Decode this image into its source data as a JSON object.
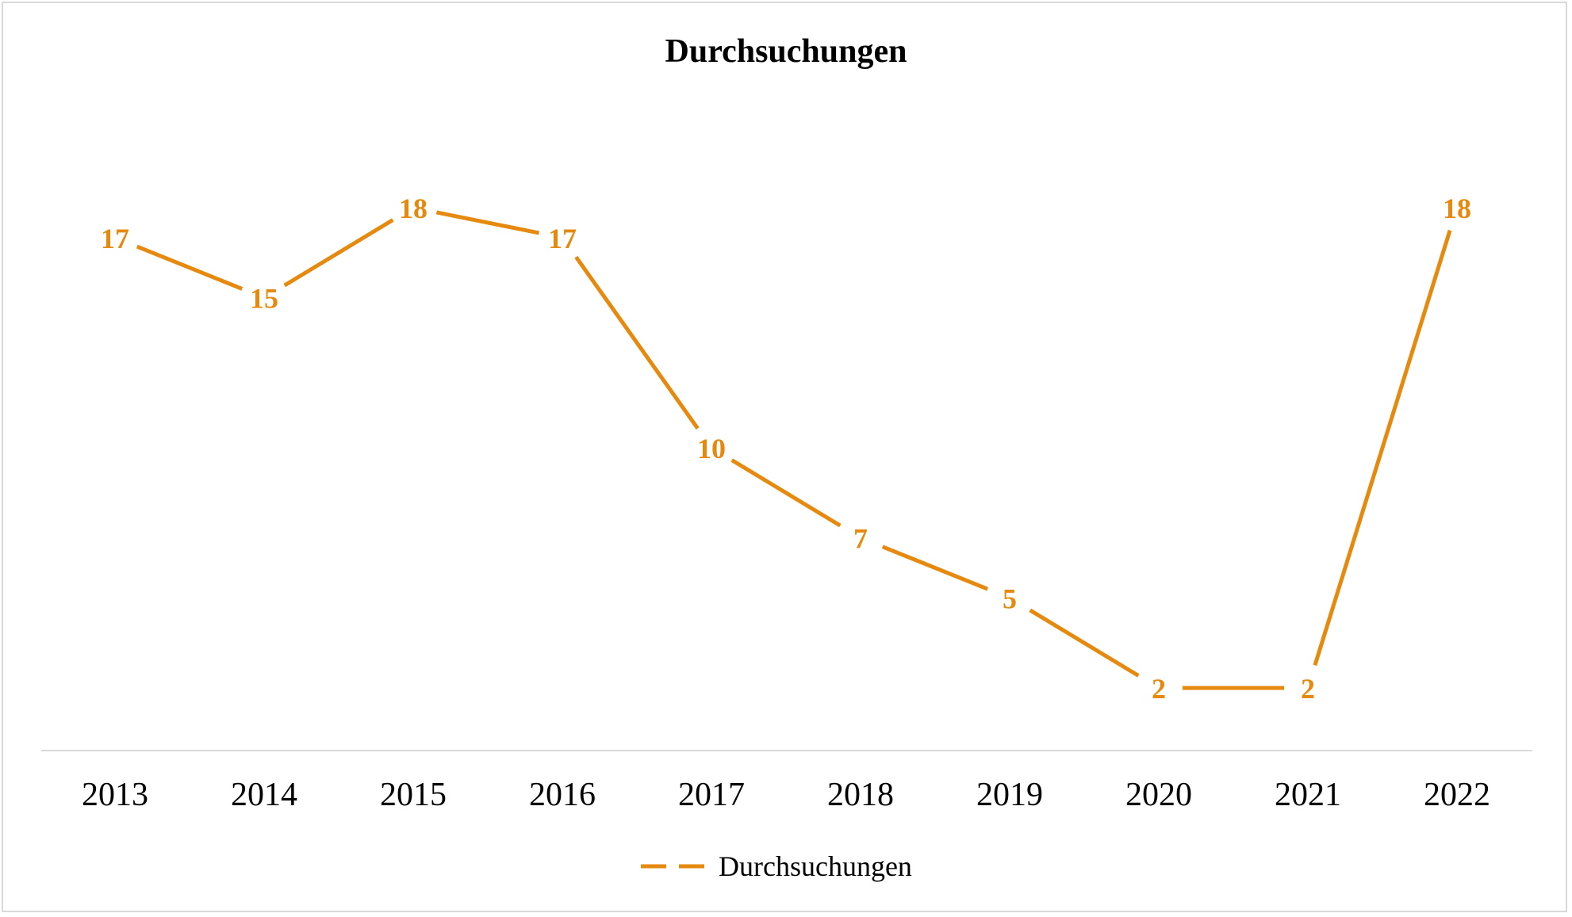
{
  "chart_data": {
    "type": "line",
    "title": "Durchsuchungen",
    "xlabel": "",
    "ylabel": "",
    "categories": [
      "2013",
      "2014",
      "2015",
      "2016",
      "2017",
      "2018",
      "2019",
      "2020",
      "2021",
      "2022"
    ],
    "series": [
      {
        "name": "Durchsuchungen",
        "values": [
          17,
          15,
          18,
          17,
          10,
          7,
          5,
          2,
          2,
          18
        ],
        "color": "#e68a0f"
      }
    ],
    "ylim": [
      0,
      18
    ],
    "grid": false,
    "data_labels": true,
    "legend_position": "bottom"
  }
}
